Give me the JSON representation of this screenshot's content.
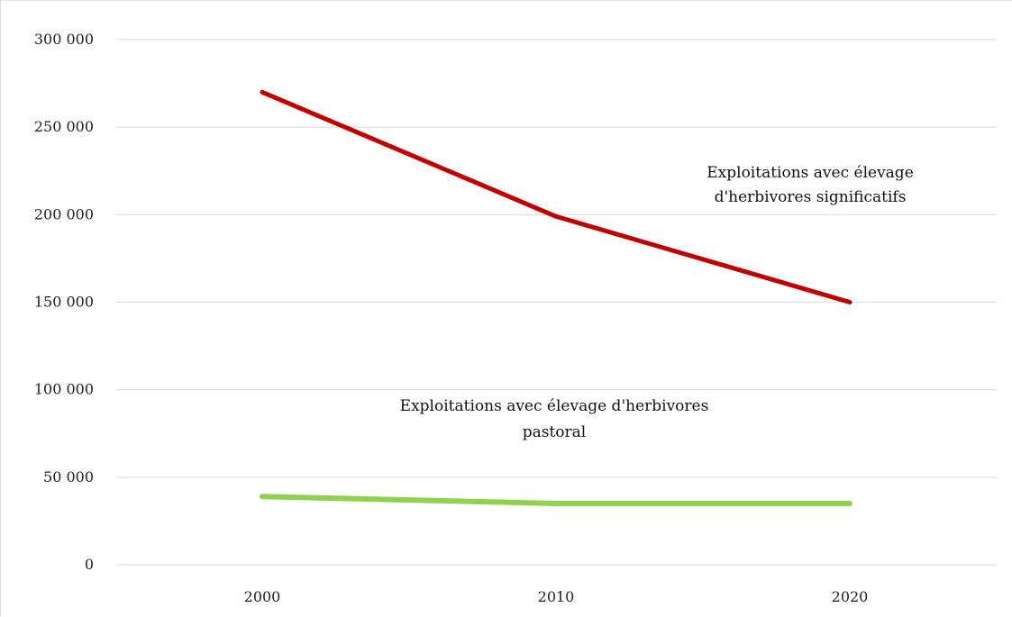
{
  "chart_data": {
    "type": "line",
    "title": "",
    "xlabel": "",
    "ylabel": "",
    "categories": [
      "2000",
      "2010",
      "2020"
    ],
    "ylim": [
      0,
      300000
    ],
    "y_ticks": [
      0,
      50000,
      100000,
      150000,
      200000,
      250000,
      300000
    ],
    "y_tick_labels": [
      "0",
      "50 000",
      "100 000",
      "150 000",
      "200 000",
      "250 000",
      "300 000"
    ],
    "grid": true,
    "legend": "none",
    "series": [
      {
        "label_lines": [
          "Exploitations avec élevage",
          "d'herbivores significatifs"
        ],
        "color": "#c00000",
        "values": [
          270000,
          199000,
          150000
        ]
      },
      {
        "label_lines": [
          "Exploitations avec élevage d'herbivores",
          "pastoral"
        ],
        "color": "#92d050",
        "values": [
          39000,
          35000,
          35000
        ]
      }
    ]
  }
}
